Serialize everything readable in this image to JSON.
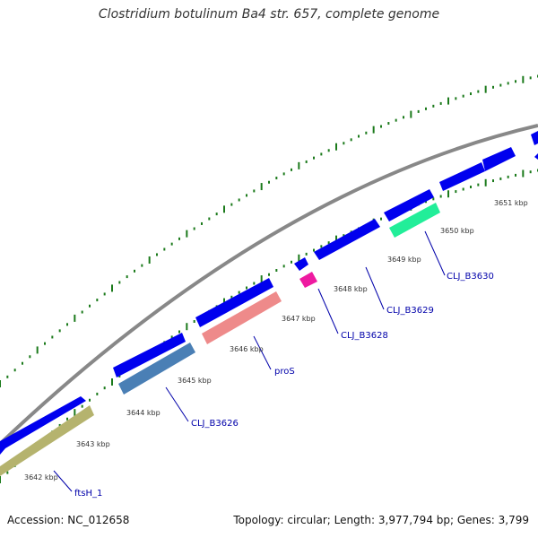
{
  "title": "Clostridium botulinum Ba4 str. 657, complete genome",
  "accession": "Accession: NC_012658",
  "summary": "Topology: circular; Length: 3,977,794 bp; Genes: 3,799",
  "ticks": [
    "3642 kbp",
    "3643 kbp",
    "3644 kbp",
    "3645 kbp",
    "3646 kbp",
    "3647 kbp",
    "3648 kbp",
    "3649 kbp",
    "3650 kbp",
    "3651 kbp"
  ],
  "gene_labels": [
    "ftsH_1",
    "CLJ_B3626",
    "proS",
    "CLJ_B3628",
    "CLJ_B3629",
    "CLJ_B3630"
  ],
  "colors": {
    "backbone": "#888888",
    "cds": "#0000ee",
    "ftsH_1": "#b5b36e",
    "CLJ_B3626": "#4a7fb5",
    "proS": "#ee8a8a",
    "CLJ_B3628": "#ee1aa0",
    "CLJ_B3630": "#22ee99",
    "ticks": "#1b7a1b"
  }
}
